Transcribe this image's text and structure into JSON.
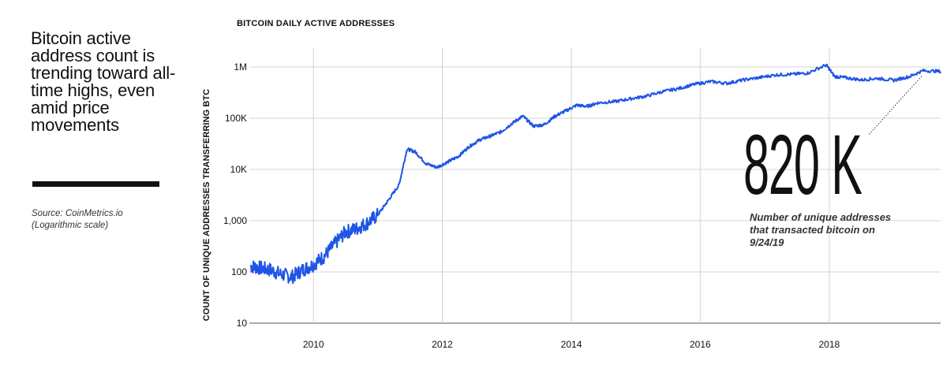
{
  "headline": "Bitcoin active address count is trending toward all-time highs, even amid price movements",
  "source": "Source: CoinMetrics.io",
  "scale_note": "(Logarithmic scale)",
  "callout": {
    "value": "820 K",
    "text": "Number of unique addresses that transacted bitcoin on 9/24/19"
  },
  "chart_data": {
    "type": "line",
    "title": "BITCOIN DAILY ACTIVE ADDRESSES",
    "xlabel": "",
    "ylabel": "COUNT OF UNIQUE ADDRESSES TRANSFERRING BTC",
    "y_scale": "log",
    "ylim": [
      10,
      1000000
    ],
    "xlim": [
      "2009-01-03",
      "2019-09-24"
    ],
    "x_ticks": [
      "2010",
      "2012",
      "2014",
      "2016",
      "2018"
    ],
    "y_ticks": [
      {
        "value": 10,
        "label": "10"
      },
      {
        "value": 100,
        "label": "100"
      },
      {
        "value": 1000,
        "label": "1,000"
      },
      {
        "value": 10000,
        "label": "10K"
      },
      {
        "value": 100000,
        "label": "100K"
      },
      {
        "value": 1000000,
        "label": "1M"
      }
    ],
    "grid": true,
    "color": "#1f55e6",
    "series": [
      {
        "x": [
          "2009-01-10",
          "2009-03-01",
          "2009-05-01",
          "2009-07-01",
          "2009-09-01",
          "2009-11-01",
          "2010-01-01",
          "2010-03-01",
          "2010-05-01",
          "2010-07-01",
          "2010-09-01",
          "2010-11-01",
          "2011-01-01",
          "2011-03-01",
          "2011-05-01",
          "2011-06-15",
          "2011-08-01",
          "2011-10-01",
          "2011-12-01",
          "2012-02-01",
          "2012-04-01",
          "2012-06-01",
          "2012-08-01",
          "2012-10-01",
          "2012-12-01",
          "2013-02-01",
          "2013-04-01",
          "2013-06-01",
          "2013-08-01",
          "2013-10-01",
          "2013-12-01",
          "2014-02-01",
          "2014-04-01",
          "2014-06-01",
          "2014-09-01",
          "2014-12-01",
          "2015-03-01",
          "2015-06-01",
          "2015-09-01",
          "2015-12-01",
          "2016-03-01",
          "2016-06-01",
          "2016-09-01",
          "2016-12-01",
          "2017-03-01",
          "2017-06-01",
          "2017-09-01",
          "2017-12-15",
          "2018-02-01",
          "2018-04-01",
          "2018-07-01",
          "2018-10-01",
          "2019-01-01",
          "2019-04-01",
          "2019-06-15",
          "2019-09-24"
        ],
        "values": [
          130,
          120,
          110,
          90,
          80,
          110,
          140,
          200,
          350,
          600,
          700,
          900,
          1300,
          2500,
          5000,
          25000,
          22000,
          13000,
          11000,
          14000,
          18000,
          28000,
          38000,
          45000,
          55000,
          80000,
          110000,
          70000,
          75000,
          110000,
          140000,
          180000,
          170000,
          200000,
          210000,
          240000,
          270000,
          330000,
          380000,
          460000,
          520000,
          480000,
          560000,
          620000,
          700000,
          720000,
          760000,
          1100000,
          650000,
          620000,
          560000,
          600000,
          550000,
          650000,
          850000,
          820000
        ]
      }
    ]
  }
}
